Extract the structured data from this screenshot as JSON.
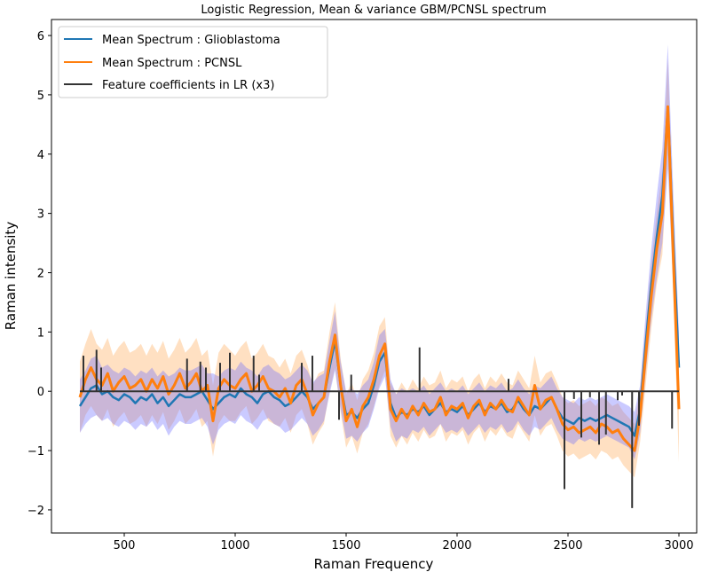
{
  "chart_data": {
    "type": "line",
    "title": "Logistic Regression, Mean & variance GBM/PCNSL spectrum",
    "xlabel": "Raman Frequency",
    "ylabel": "Raman intensity",
    "xlim": [
      172,
      3080
    ],
    "ylim": [
      -2.39,
      6.27
    ],
    "xticks": [
      500,
      1000,
      1500,
      2000,
      2500,
      3000
    ],
    "yticks": [
      -2,
      -1,
      0,
      1,
      2,
      3,
      4,
      5,
      6
    ],
    "legend_position": "top-left",
    "colors": {
      "gbm": "#1f77b4",
      "pcnsl": "#ff7f0e",
      "gbm_band": "#6666ff",
      "pcnsl_band": "#ffbb77",
      "coef": "#333333"
    },
    "x_start": 300,
    "x_step": 25,
    "series": [
      {
        "name": "Mean Spectrum : Glioblastoma",
        "values": [
          -0.25,
          -0.1,
          0.05,
          0.1,
          -0.05,
          0.0,
          -0.1,
          -0.15,
          -0.05,
          -0.1,
          -0.2,
          -0.1,
          -0.15,
          -0.05,
          -0.2,
          -0.1,
          -0.25,
          -0.15,
          -0.05,
          -0.1,
          -0.1,
          -0.05,
          0.0,
          -0.15,
          -0.3,
          -0.2,
          -0.1,
          -0.05,
          -0.1,
          0.05,
          -0.05,
          -0.1,
          -0.2,
          -0.05,
          0.0,
          -0.1,
          -0.15,
          -0.25,
          -0.2,
          -0.1,
          0.0,
          -0.1,
          -0.3,
          -0.2,
          -0.1,
          0.4,
          0.85,
          0.1,
          -0.4,
          -0.35,
          -0.45,
          -0.3,
          -0.2,
          0.1,
          0.5,
          0.65,
          -0.2,
          -0.45,
          -0.35,
          -0.4,
          -0.3,
          -0.35,
          -0.25,
          -0.4,
          -0.3,
          -0.2,
          -0.35,
          -0.3,
          -0.35,
          -0.25,
          -0.4,
          -0.3,
          -0.2,
          -0.35,
          -0.25,
          -0.3,
          -0.2,
          -0.35,
          -0.3,
          -0.15,
          -0.3,
          -0.4,
          -0.25,
          -0.3,
          -0.2,
          -0.1,
          -0.3,
          -0.45,
          -0.5,
          -0.55,
          -0.45,
          -0.5,
          -0.45,
          -0.5,
          -0.45,
          -0.4,
          -0.45,
          -0.5,
          -0.55,
          -0.6,
          -0.75,
          -0.3,
          0.8,
          1.8,
          2.6,
          3.3,
          4.8,
          2.5,
          0.4
        ],
        "std": [
          0.45,
          0.45,
          0.5,
          0.5,
          0.45,
          0.45,
          0.45,
          0.45,
          0.45,
          0.45,
          0.45,
          0.45,
          0.45,
          0.45,
          0.45,
          0.45,
          0.5,
          0.45,
          0.45,
          0.45,
          0.45,
          0.45,
          0.45,
          0.45,
          0.6,
          0.45,
          0.45,
          0.45,
          0.45,
          0.45,
          0.45,
          0.45,
          0.45,
          0.45,
          0.45,
          0.45,
          0.45,
          0.45,
          0.45,
          0.45,
          0.45,
          0.45,
          0.45,
          0.45,
          0.4,
          0.45,
          0.5,
          0.4,
          0.4,
          0.4,
          0.4,
          0.4,
          0.4,
          0.4,
          0.45,
          0.4,
          0.4,
          0.4,
          0.4,
          0.4,
          0.35,
          0.35,
          0.35,
          0.35,
          0.35,
          0.35,
          0.35,
          0.35,
          0.35,
          0.35,
          0.35,
          0.35,
          0.35,
          0.35,
          0.35,
          0.35,
          0.35,
          0.35,
          0.35,
          0.35,
          0.35,
          0.35,
          0.35,
          0.35,
          0.35,
          0.35,
          0.35,
          0.35,
          0.35,
          0.35,
          0.35,
          0.35,
          0.35,
          0.35,
          0.35,
          0.35,
          0.35,
          0.35,
          0.35,
          0.35,
          0.4,
          0.4,
          0.5,
          0.6,
          0.7,
          0.8,
          1.05,
          0.8,
          0.6
        ]
      },
      {
        "name": "Mean Spectrum : PCNSL",
        "values": [
          -0.1,
          0.2,
          0.4,
          0.2,
          0.1,
          0.3,
          0.0,
          0.15,
          0.25,
          0.05,
          0.1,
          0.2,
          0.0,
          0.2,
          0.05,
          0.25,
          -0.05,
          0.1,
          0.3,
          0.05,
          0.15,
          0.3,
          0.0,
          0.1,
          -0.5,
          0.05,
          0.2,
          0.1,
          0.05,
          0.2,
          0.3,
          0.0,
          0.1,
          0.25,
          0.05,
          0.0,
          -0.1,
          0.05,
          -0.2,
          0.1,
          0.2,
          -0.05,
          -0.4,
          -0.2,
          -0.1,
          0.5,
          0.95,
          0.1,
          -0.5,
          -0.3,
          -0.6,
          -0.25,
          -0.1,
          0.2,
          0.6,
          0.8,
          -0.3,
          -0.5,
          -0.3,
          -0.45,
          -0.25,
          -0.4,
          -0.2,
          -0.35,
          -0.3,
          -0.1,
          -0.4,
          -0.25,
          -0.3,
          -0.2,
          -0.45,
          -0.25,
          -0.15,
          -0.4,
          -0.2,
          -0.3,
          -0.15,
          -0.3,
          -0.35,
          -0.1,
          -0.25,
          -0.4,
          0.1,
          -0.3,
          -0.15,
          -0.1,
          -0.3,
          -0.55,
          -0.65,
          -0.6,
          -0.7,
          -0.65,
          -0.6,
          -0.7,
          -0.55,
          -0.6,
          -0.7,
          -0.65,
          -0.8,
          -0.9,
          -1.0,
          -0.4,
          0.6,
          1.6,
          2.4,
          3.0,
          4.8,
          2.2,
          -0.3
        ],
        "std": [
          0.6,
          0.6,
          0.65,
          0.6,
          0.6,
          0.6,
          0.6,
          0.6,
          0.6,
          0.6,
          0.6,
          0.6,
          0.6,
          0.6,
          0.6,
          0.6,
          0.6,
          0.6,
          0.6,
          0.6,
          0.6,
          0.6,
          0.6,
          0.6,
          0.6,
          0.6,
          0.6,
          0.6,
          0.55,
          0.55,
          0.55,
          0.55,
          0.55,
          0.55,
          0.55,
          0.55,
          0.5,
          0.5,
          0.5,
          0.5,
          0.5,
          0.5,
          0.5,
          0.5,
          0.45,
          0.5,
          0.55,
          0.45,
          0.45,
          0.45,
          0.45,
          0.45,
          0.45,
          0.45,
          0.5,
          0.45,
          0.45,
          0.45,
          0.45,
          0.45,
          0.45,
          0.45,
          0.45,
          0.45,
          0.45,
          0.45,
          0.45,
          0.45,
          0.45,
          0.45,
          0.45,
          0.45,
          0.45,
          0.45,
          0.45,
          0.45,
          0.45,
          0.45,
          0.45,
          0.45,
          0.45,
          0.45,
          0.5,
          0.45,
          0.45,
          0.45,
          0.45,
          0.45,
          0.45,
          0.45,
          0.45,
          0.45,
          0.45,
          0.45,
          0.45,
          0.45,
          0.45,
          0.45,
          0.45,
          0.45,
          0.45,
          0.45,
          0.5,
          0.55,
          0.6,
          0.7,
          0.8,
          0.7,
          0.9
        ]
      }
    ],
    "coefficients": {
      "name": "Feature coefficients in LR (x3)",
      "x_range": [
        300,
        3000
      ],
      "points": [
        [
          316,
          0.6
        ],
        [
          375,
          0.7
        ],
        [
          396,
          0.4
        ],
        [
          783,
          0.55
        ],
        [
          843,
          0.5
        ],
        [
          868,
          0.4
        ],
        [
          932,
          0.48
        ],
        [
          976,
          0.65
        ],
        [
          1083,
          0.6
        ],
        [
          1108,
          0.28
        ],
        [
          1300,
          0.48
        ],
        [
          1348,
          0.6
        ],
        [
          1468,
          -0.48
        ],
        [
          1523,
          0.28
        ],
        [
          1831,
          0.74
        ],
        [
          2232,
          0.21
        ],
        [
          2484,
          -1.65
        ],
        [
          2527,
          -0.13
        ],
        [
          2560,
          -0.78
        ],
        [
          2599,
          -0.1
        ],
        [
          2640,
          -0.9
        ],
        [
          2671,
          -0.73
        ],
        [
          2724,
          -0.15
        ],
        [
          2744,
          -0.07
        ],
        [
          2789,
          -1.97
        ],
        [
          2820,
          -0.58
        ],
        [
          2969,
          -0.63
        ]
      ]
    }
  }
}
